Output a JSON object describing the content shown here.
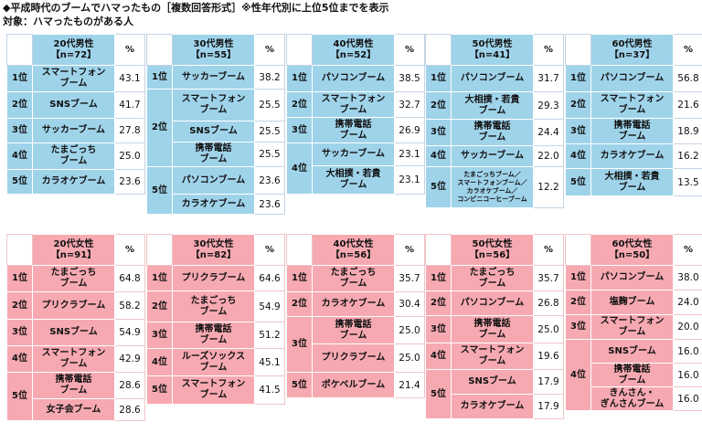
{
  "title": "◆平成時代のブームでハマったもの［複数回答形式］※性年代別に上位5位までを表示",
  "subtitle": "対象：ハマったものがある人",
  "pct_label": "%",
  "colors": {
    "male_head": "#9fd3ea",
    "male_cell": "#9fd3ea",
    "female_head": "#f6a9b1",
    "female_cell": "#f6a9b1"
  },
  "male": [
    {
      "group": "20代男性",
      "n": "【n=72】",
      "rows": [
        {
          "rank": "1位",
          "item": "スマートフォン\nブーム",
          "value": "43.1"
        },
        {
          "rank": "2位",
          "item": "SNSブーム",
          "value": "41.7"
        },
        {
          "rank": "3位",
          "item": "サッカーブーム",
          "value": "27.8"
        },
        {
          "rank": "4位",
          "item": "たまごっち\nブーム",
          "value": "25.0"
        },
        {
          "rank": "5位",
          "item": "カラオケブーム",
          "value": "23.6"
        }
      ]
    },
    {
      "group": "30代男性",
      "n": "【n=55】",
      "rows": [
        {
          "rank": "1位",
          "item": "サッカーブーム",
          "value": "38.2"
        },
        {
          "rank": "2位",
          "item": "スマートフォン\nブーム",
          "value": "25.5"
        },
        {
          "rank": "",
          "item": "SNSブーム",
          "value": "25.5"
        },
        {
          "rank": "",
          "item": "携帯電話\nブーム",
          "value": "25.5"
        },
        {
          "rank": "5位",
          "item": "パソコンブーム",
          "value": "23.6"
        },
        {
          "rank": "",
          "item": "カラオケブーム",
          "value": "23.6"
        }
      ]
    },
    {
      "group": "40代男性",
      "n": "【n=52】",
      "rows": [
        {
          "rank": "1位",
          "item": "パソコンブーム",
          "value": "38.5"
        },
        {
          "rank": "2位",
          "item": "スマートフォン\nブーム",
          "value": "32.7"
        },
        {
          "rank": "3位",
          "item": "携帯電話\nブーム",
          "value": "26.9"
        },
        {
          "rank": "4位",
          "item": "サッカーブーム",
          "value": "23.1"
        },
        {
          "rank": "",
          "item": "大相撲・若貴\nブーム",
          "value": "23.1"
        }
      ]
    },
    {
      "group": "50代男性",
      "n": "【n=41】",
      "rows": [
        {
          "rank": "1位",
          "item": "パソコンブーム",
          "value": "31.7"
        },
        {
          "rank": "2位",
          "item": "大相撲・若貴\nブーム",
          "value": "29.3"
        },
        {
          "rank": "3位",
          "item": "携帯電話\nブーム",
          "value": "24.4"
        },
        {
          "rank": "4位",
          "item": "サッカーブーム",
          "value": "22.0"
        },
        {
          "rank": "5位",
          "item": "たまごっちブーム／\nスマートフォンブーム／\nカラオケブーム／\nコンビニコーヒーブーム",
          "value": "12.2"
        }
      ]
    },
    {
      "group": "60代男性",
      "n": "【n=37】",
      "rows": [
        {
          "rank": "1位",
          "item": "パソコンブーム",
          "value": "56.8"
        },
        {
          "rank": "2位",
          "item": "スマートフォン\nブーム",
          "value": "21.6"
        },
        {
          "rank": "3位",
          "item": "携帯電話\nブーム",
          "value": "18.9"
        },
        {
          "rank": "4位",
          "item": "カラオケブーム",
          "value": "16.2"
        },
        {
          "rank": "5位",
          "item": "大相撲・若貴\nブーム",
          "value": "13.5"
        }
      ]
    }
  ],
  "female": [
    {
      "group": "20代女性",
      "n": "【n=91】",
      "rows": [
        {
          "rank": "1位",
          "item": "たまごっち\nブーム",
          "value": "64.8"
        },
        {
          "rank": "2位",
          "item": "プリクラブーム",
          "value": "58.2"
        },
        {
          "rank": "3位",
          "item": "SNSブーム",
          "value": "54.9"
        },
        {
          "rank": "4位",
          "item": "スマートフォン\nブーム",
          "value": "42.9"
        },
        {
          "rank": "5位",
          "item": "携帯電話\nブーム",
          "value": "28.6"
        },
        {
          "rank": "",
          "item": "女子会ブーム",
          "value": "28.6"
        }
      ]
    },
    {
      "group": "30代女性",
      "n": "【n=82】",
      "rows": [
        {
          "rank": "1位",
          "item": "プリクラブーム",
          "value": "64.6"
        },
        {
          "rank": "2位",
          "item": "たまごっち\nブーム",
          "value": "54.9"
        },
        {
          "rank": "3位",
          "item": "携帯電話\nブーム",
          "value": "51.2"
        },
        {
          "rank": "4位",
          "item": "ルーズソックス\nブーム",
          "value": "45.1"
        },
        {
          "rank": "5位",
          "item": "スマートフォン\nブーム",
          "value": "41.5"
        }
      ]
    },
    {
      "group": "40代女性",
      "n": "【n=56】",
      "rows": [
        {
          "rank": "1位",
          "item": "たまごっち\nブーム",
          "value": "35.7"
        },
        {
          "rank": "2位",
          "item": "カラオケブーム",
          "value": "30.4"
        },
        {
          "rank": "3位",
          "item": "携帯電話\nブーム",
          "value": "25.0"
        },
        {
          "rank": "",
          "item": "プリクラブーム",
          "value": "25.0"
        },
        {
          "rank": "5位",
          "item": "ポケベルブーム",
          "value": "21.4"
        }
      ]
    },
    {
      "group": "50代女性",
      "n": "【n=56】",
      "rows": [
        {
          "rank": "1位",
          "item": "たまごっち\nブーム",
          "value": "35.7"
        },
        {
          "rank": "2位",
          "item": "パソコンブーム",
          "value": "26.8"
        },
        {
          "rank": "3位",
          "item": "携帯電話\nブーム",
          "value": "25.0"
        },
        {
          "rank": "4位",
          "item": "スマートフォン\nブーム",
          "value": "19.6"
        },
        {
          "rank": "5位",
          "item": "SNSブーム",
          "value": "17.9"
        },
        {
          "rank": "",
          "item": "カラオケブーム",
          "value": "17.9"
        }
      ]
    },
    {
      "group": "60代女性",
      "n": "【n=50】",
      "rows": [
        {
          "rank": "1位",
          "item": "パソコンブーム",
          "value": "38.0"
        },
        {
          "rank": "2位",
          "item": "塩麹ブーム",
          "value": "24.0"
        },
        {
          "rank": "3位",
          "item": "スマートフォン\nブーム",
          "value": "20.0"
        },
        {
          "rank": "4位",
          "item": "SNSブーム",
          "value": "16.0"
        },
        {
          "rank": "",
          "item": "携帯電話\nブーム",
          "value": "16.0"
        },
        {
          "rank": "",
          "item": "きんさん・\nぎんさんブーム",
          "value": "16.0"
        }
      ]
    }
  ]
}
